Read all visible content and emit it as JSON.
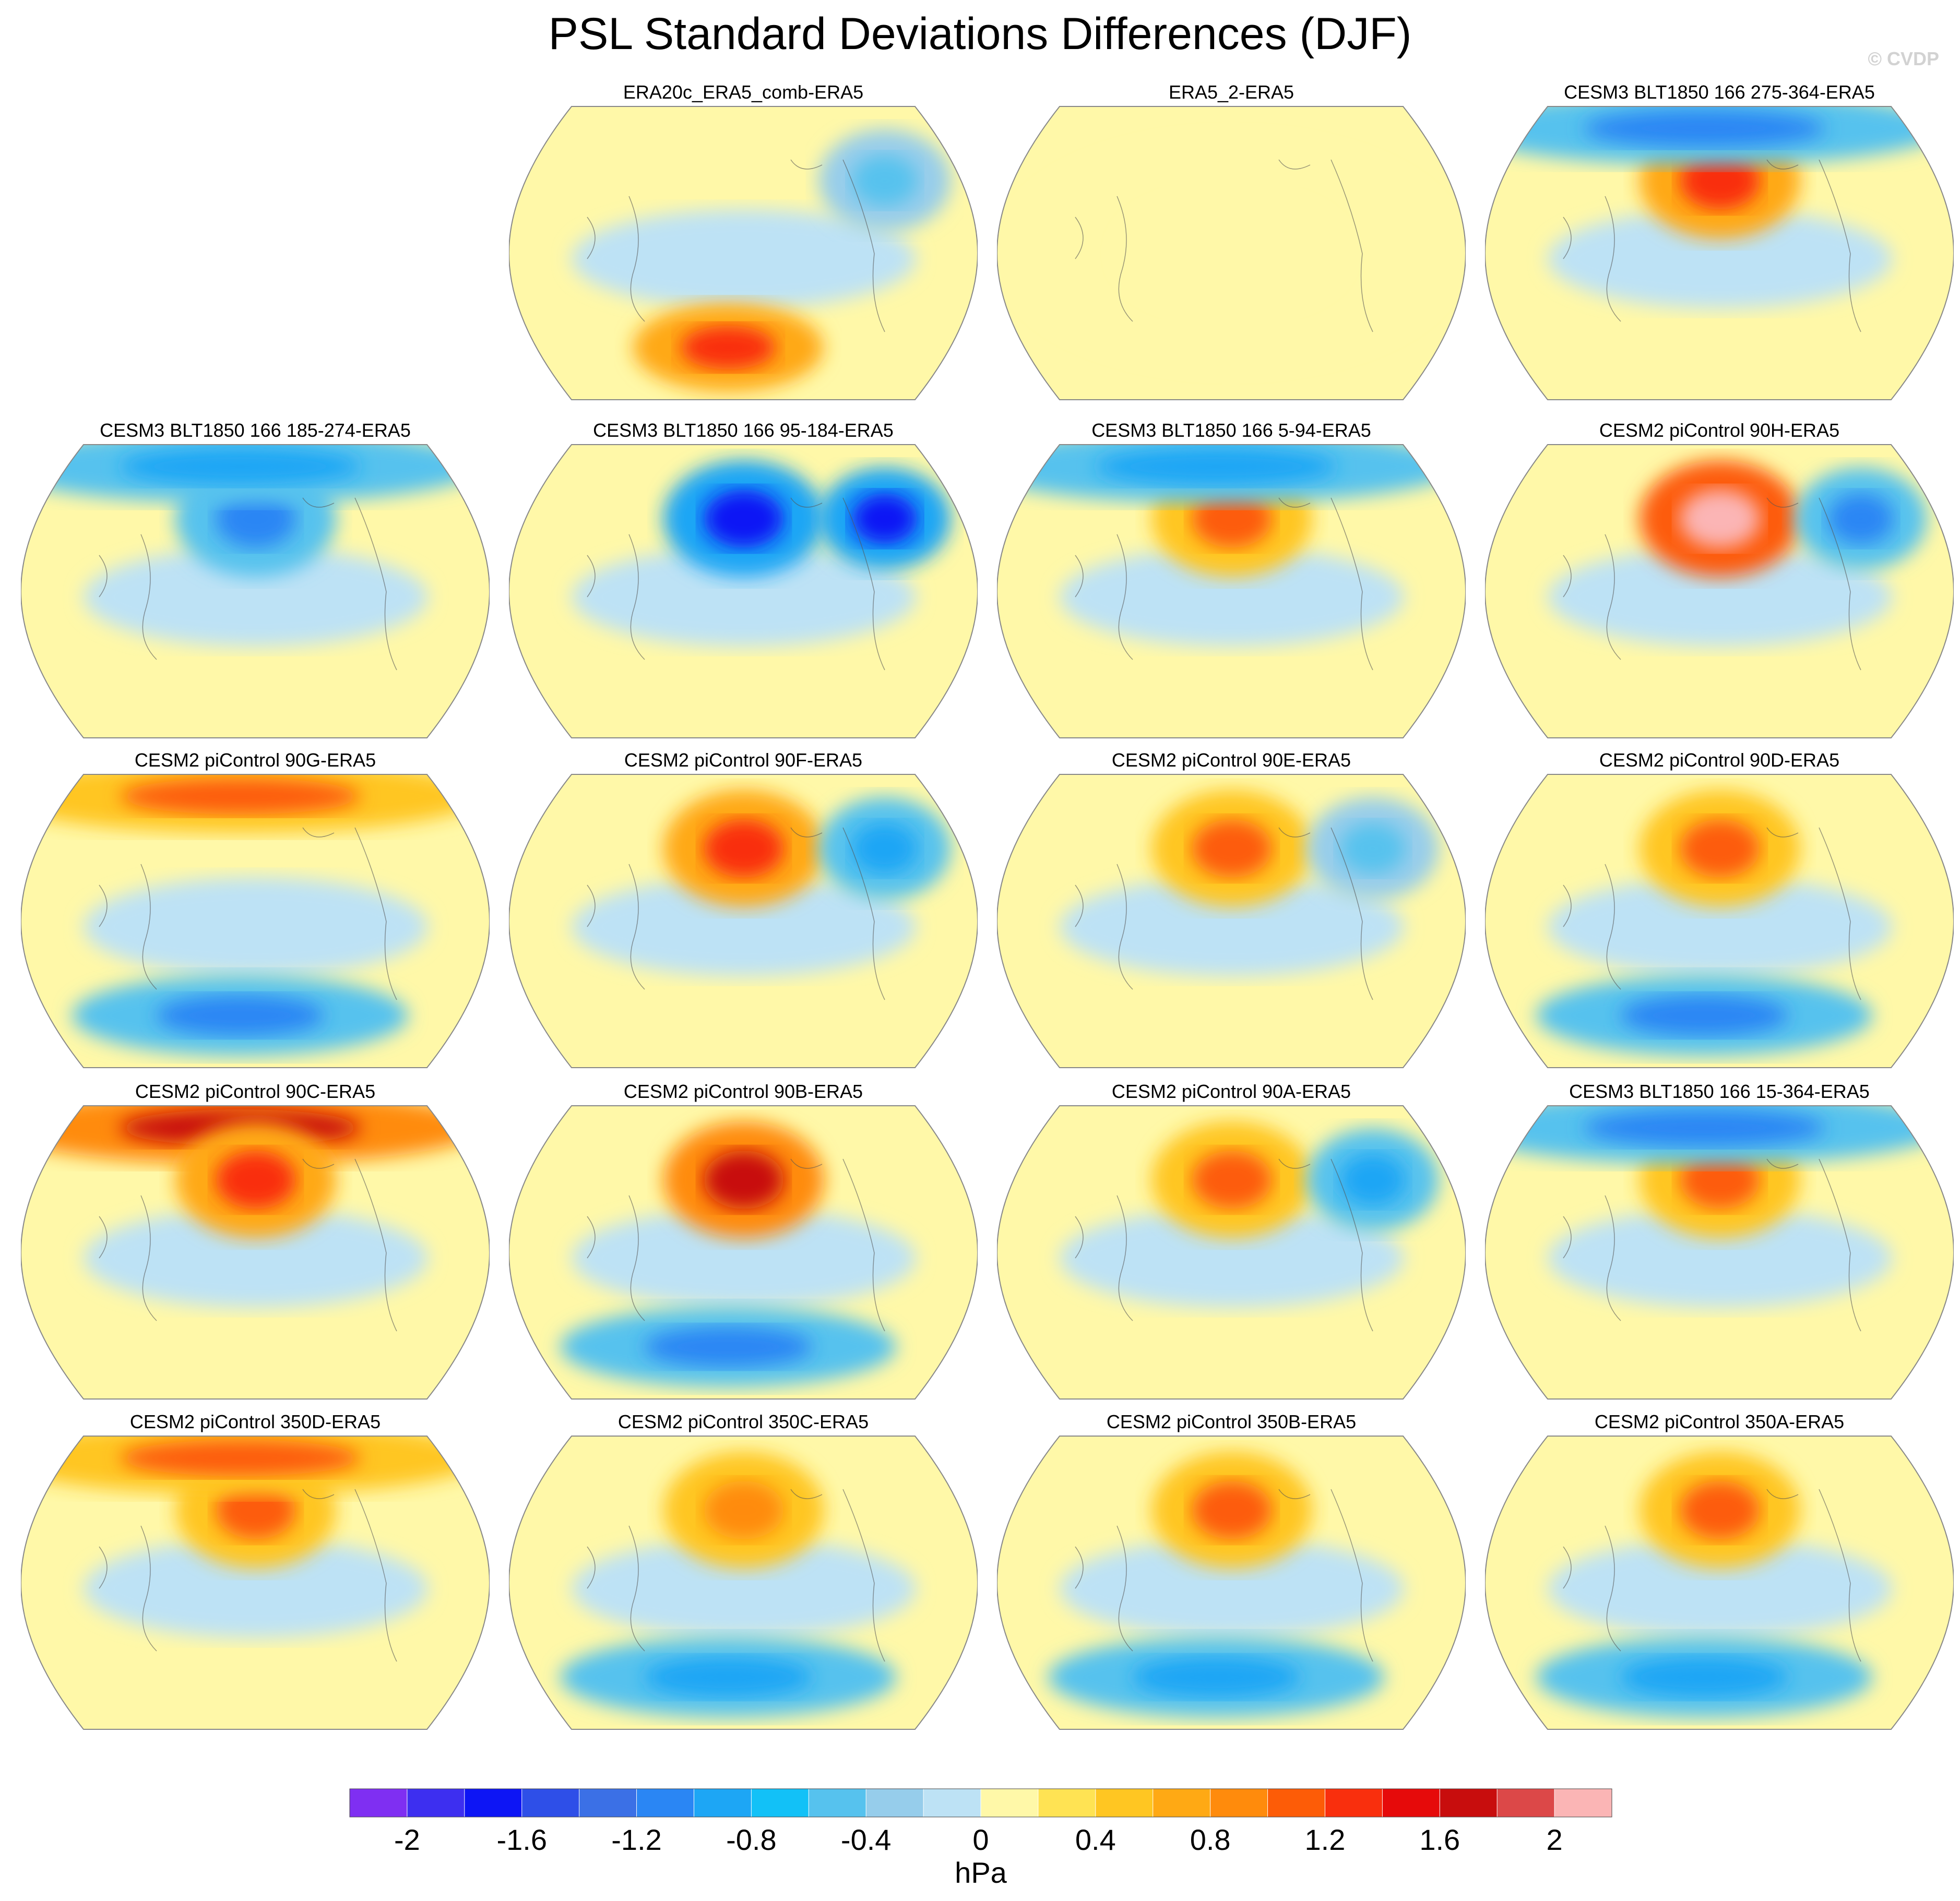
{
  "title": "PSL Standard Deviations Differences (DJF)",
  "copyright": "© CVDP",
  "chart_data": {
    "type": "heatmap",
    "projection": "Robinson, Pacific-centered world maps",
    "variable": "PSL standard deviation difference, DJF",
    "units": "hPa",
    "panels": [
      {
        "title": "ERA20c_ERA5_comb-ERA5",
        "row": 0,
        "col": 1,
        "features": [
          {
            "region": "Southern Ocean south of Pacific",
            "value": 1.4
          },
          {
            "region": "North Atlantic",
            "value": -0.6
          }
        ]
      },
      {
        "title": "ERA5_2-ERA5",
        "row": 0,
        "col": 2,
        "features": [
          {
            "region": "global",
            "value": 0.0
          }
        ]
      },
      {
        "title": "CESM3 BLT1850 166 275-364-ERA5",
        "row": 0,
        "col": 3,
        "features": [
          {
            "region": "North Pacific",
            "value": 1.4
          },
          {
            "region": "Arctic",
            "value": -1.2
          }
        ]
      },
      {
        "title": "CESM3 BLT1850 166 185-274-ERA5",
        "row": 1,
        "col": 0,
        "features": [
          {
            "region": "North Pacific",
            "value": -1.2
          },
          {
            "region": "Arctic",
            "value": -0.8
          }
        ]
      },
      {
        "title": "CESM3 BLT1850 166 95-184-ERA5",
        "row": 1,
        "col": 1,
        "features": [
          {
            "region": "North Pacific",
            "value": -1.6
          },
          {
            "region": "North Atlantic",
            "value": -1.6
          }
        ]
      },
      {
        "title": "CESM3 BLT1850 166 5-94-ERA5",
        "row": 1,
        "col": 2,
        "features": [
          {
            "region": "North Pacific",
            "value": 1.0
          },
          {
            "region": "Arctic",
            "value": -0.8
          }
        ]
      },
      {
        "title": "CESM2 piControl 90H-ERA5",
        "row": 1,
        "col": 3,
        "features": [
          {
            "region": "North Pacific",
            "value": 2.2
          },
          {
            "region": "North Atlantic",
            "value": -1.0
          }
        ]
      },
      {
        "title": "CESM2 piControl 90G-ERA5",
        "row": 2,
        "col": 0,
        "features": [
          {
            "region": "Arctic",
            "value": 1.2
          },
          {
            "region": "Southern Ocean",
            "value": -1.0
          }
        ]
      },
      {
        "title": "CESM2 piControl 90F-ERA5",
        "row": 2,
        "col": 1,
        "features": [
          {
            "region": "North Pacific",
            "value": 1.4
          },
          {
            "region": "North Atlantic",
            "value": -0.8
          }
        ]
      },
      {
        "title": "CESM2 piControl 90E-ERA5",
        "row": 2,
        "col": 2,
        "features": [
          {
            "region": "North Pacific",
            "value": 1.0
          },
          {
            "region": "North Atlantic",
            "value": -0.6
          }
        ]
      },
      {
        "title": "CESM2 piControl 90D-ERA5",
        "row": 2,
        "col": 3,
        "features": [
          {
            "region": "North Pacific",
            "value": 1.0
          },
          {
            "region": "Southern Ocean",
            "value": -1.0
          }
        ]
      },
      {
        "title": "CESM2 piControl 90C-ERA5",
        "row": 3,
        "col": 0,
        "features": [
          {
            "region": "Arctic",
            "value": 1.6
          },
          {
            "region": "North Pacific",
            "value": 1.4
          }
        ]
      },
      {
        "title": "CESM2 piControl 90B-ERA5",
        "row": 3,
        "col": 1,
        "features": [
          {
            "region": "North Pacific",
            "value": 1.6
          },
          {
            "region": "Southern Ocean",
            "value": -1.0
          }
        ]
      },
      {
        "title": "CESM2 piControl 90A-ERA5",
        "row": 3,
        "col": 2,
        "features": [
          {
            "region": "North Pacific",
            "value": 1.2
          },
          {
            "region": "North Atlantic",
            "value": -0.8
          }
        ]
      },
      {
        "title": "CESM3 BLT1850 166 15-364-ERA5",
        "row": 3,
        "col": 3,
        "features": [
          {
            "region": "North Pacific",
            "value": 1.0
          },
          {
            "region": "Arctic",
            "value": -1.0
          }
        ]
      },
      {
        "title": "CESM2 piControl 350D-ERA5",
        "row": 4,
        "col": 0,
        "features": [
          {
            "region": "North Pacific",
            "value": 1.2
          },
          {
            "region": "Arctic",
            "value": 1.0
          }
        ]
      },
      {
        "title": "CESM2 piControl 350C-ERA5",
        "row": 4,
        "col": 1,
        "features": [
          {
            "region": "North Pacific",
            "value": 0.8
          },
          {
            "region": "Southern Ocean",
            "value": -0.8
          }
        ]
      },
      {
        "title": "CESM2 piControl 350B-ERA5",
        "row": 4,
        "col": 2,
        "features": [
          {
            "region": "North Pacific",
            "value": 1.0
          },
          {
            "region": "Southern Ocean",
            "value": -0.8
          }
        ]
      },
      {
        "title": "CESM2 piControl 350A-ERA5",
        "row": 4,
        "col": 3,
        "features": [
          {
            "region": "North Pacific",
            "value": 1.2
          },
          {
            "region": "Southern Ocean",
            "value": -0.8
          }
        ]
      }
    ],
    "colorbar": {
      "label": "hPa",
      "tick_labels": [
        "-2",
        "-1.6",
        "-1.2",
        "-0.8",
        "-0.4",
        "0",
        "0.4",
        "0.8",
        "1.2",
        "1.6",
        "2"
      ],
      "colors": [
        "#7f2ff2",
        "#3d2ff0",
        "#0d15f5",
        "#2e4fe8",
        "#3b70e6",
        "#2a86f4",
        "#1da6f5",
        "#12c1f7",
        "#56c2ee",
        "#96cdeb",
        "#bde2f5",
        "#fff8a8",
        "#ffe353",
        "#ffc622",
        "#ffa914",
        "#ff8b0c",
        "#fd5c07",
        "#f92f0d",
        "#e60a0a",
        "#c80d0d",
        "#dc4848",
        "#fbb5b5"
      ]
    }
  }
}
